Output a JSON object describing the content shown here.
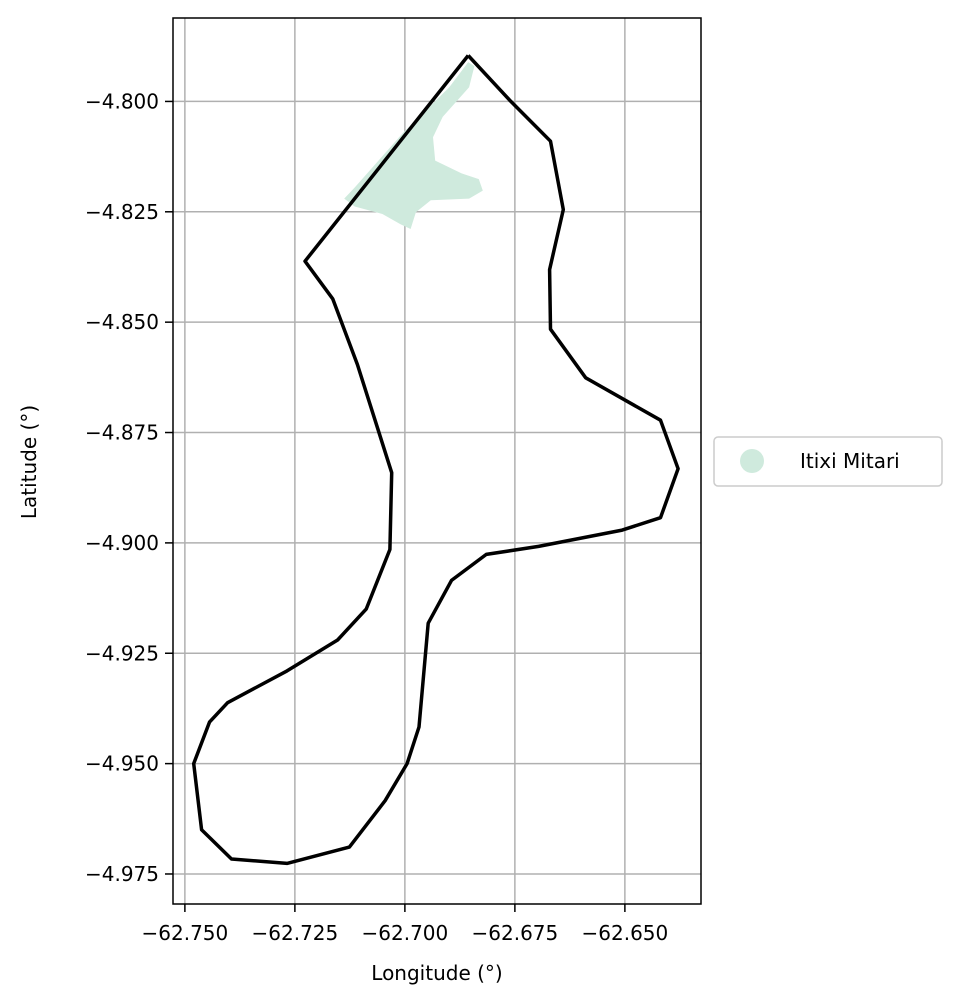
{
  "chart_data": {
    "type": "map",
    "xlabel": "Longitude (°)",
    "ylabel": "Latitude (°)",
    "xlim": [
      -62.7527,
      -62.6327
    ],
    "ylim": [
      -4.9818,
      -4.7811
    ],
    "x_ticks": [
      -62.75,
      -62.725,
      -62.7,
      -62.675,
      -62.65
    ],
    "x_tick_labels": [
      "−62.750",
      "−62.725",
      "−62.700",
      "−62.675",
      "−62.650"
    ],
    "y_ticks": [
      -4.8,
      -4.825,
      -4.85,
      -4.875,
      -4.9,
      -4.925,
      -4.95,
      -4.975
    ],
    "y_tick_labels": [
      "−4.800",
      "−4.825",
      "−4.850",
      "−4.875",
      "−4.900",
      "−4.925",
      "−4.950",
      "−4.975"
    ],
    "grid": true,
    "legend_position": "right",
    "series": [
      {
        "name": "Itixi Mitari",
        "kind": "filled-region",
        "color": "#cfeadd",
        "points": [
          [
            -62.6842,
            -4.792
          ],
          [
            -62.6854,
            -4.7968
          ],
          [
            -62.6914,
            -4.8035
          ],
          [
            -62.6936,
            -4.8081
          ],
          [
            -62.6931,
            -4.8134
          ],
          [
            -62.6871,
            -4.8163
          ],
          [
            -62.6832,
            -4.8176
          ],
          [
            -62.6823,
            -4.8202
          ],
          [
            -62.6854,
            -4.822
          ],
          [
            -62.6941,
            -4.8224
          ],
          [
            -62.6975,
            -4.8251
          ],
          [
            -62.6987,
            -4.8289
          ],
          [
            -62.701,
            -4.8278
          ],
          [
            -62.7051,
            -4.8255
          ],
          [
            -62.7114,
            -4.8238
          ],
          [
            -62.7138,
            -4.822
          ],
          [
            -62.7114,
            -4.8195
          ],
          [
            -62.7004,
            -4.8071
          ],
          [
            -62.6899,
            -4.7968
          ],
          [
            -62.6856,
            -4.7911
          ]
        ]
      },
      {
        "name": "",
        "kind": "outline",
        "color": "#000000",
        "points": [
          [
            -62.6856,
            -4.7896
          ],
          [
            -62.6762,
            -4.7997
          ],
          [
            -62.6669,
            -4.809
          ],
          [
            -62.664,
            -4.8245
          ],
          [
            -62.6671,
            -4.8381
          ],
          [
            -62.6669,
            -4.8516
          ],
          [
            -62.6589,
            -4.8626
          ],
          [
            -62.6419,
            -4.8722
          ],
          [
            -62.6379,
            -4.8832
          ],
          [
            -62.6419,
            -4.8943
          ],
          [
            -62.6506,
            -4.8971
          ],
          [
            -62.6696,
            -4.9008
          ],
          [
            -62.6815,
            -4.9026
          ],
          [
            -62.6894,
            -4.9085
          ],
          [
            -62.6947,
            -4.9182
          ],
          [
            -62.6968,
            -4.9417
          ],
          [
            -62.6995,
            -4.95
          ],
          [
            -62.7045,
            -4.9584
          ],
          [
            -62.7126,
            -4.9689
          ],
          [
            -62.7268,
            -4.9726
          ],
          [
            -62.7394,
            -4.9716
          ],
          [
            -62.7462,
            -4.965
          ],
          [
            -62.748,
            -4.95
          ],
          [
            -62.7444,
            -4.9406
          ],
          [
            -62.7403,
            -4.9362
          ],
          [
            -62.7268,
            -4.929
          ],
          [
            -62.7153,
            -4.922
          ],
          [
            -62.7088,
            -4.915
          ],
          [
            -62.7034,
            -4.9015
          ],
          [
            -62.703,
            -4.8841
          ],
          [
            -62.7108,
            -4.8596
          ],
          [
            -62.7164,
            -4.8447
          ],
          [
            -62.7227,
            -4.8362
          ],
          [
            -62.6856,
            -4.7896
          ]
        ]
      }
    ]
  }
}
